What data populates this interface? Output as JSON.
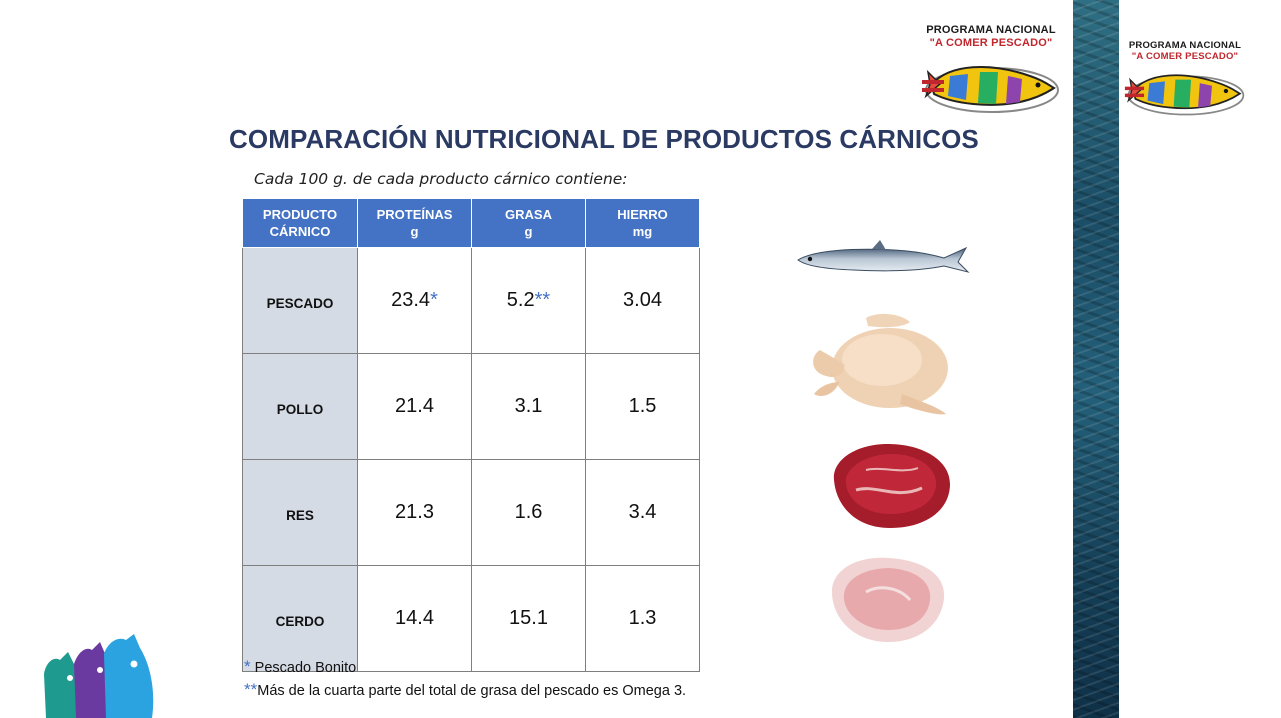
{
  "logo": {
    "line1": "PROGRAMA NACIONAL",
    "line2": "\"A COMER PESCADO\""
  },
  "title": "COMPARACIÓN NUTRICIONAL DE PRODUCTOS CÁRNICOS",
  "subtitle": "Cada 100 g. de cada producto cárnico contiene:",
  "table": {
    "headers": [
      {
        "line1": "PRODUCTO",
        "line2": "CÁRNICO"
      },
      {
        "line1": "PROTEÍNAS",
        "line2": "g"
      },
      {
        "line1": "GRASA",
        "line2": "g"
      },
      {
        "line1": "HIERRO",
        "line2": "mg"
      }
    ],
    "rows": [
      {
        "product": "PESCADO",
        "protein": "23.4",
        "protein_mark": "*",
        "fat": "5.2",
        "fat_mark": "**",
        "iron": "3.04"
      },
      {
        "product": "POLLO",
        "protein": "21.4",
        "protein_mark": "",
        "fat": "3.1",
        "fat_mark": "",
        "iron": "1.5"
      },
      {
        "product": "RES",
        "protein": "21.3",
        "protein_mark": "",
        "fat": "1.6",
        "fat_mark": "",
        "iron": "3.4"
      },
      {
        "product": "CERDO",
        "protein": "14.4",
        "protein_mark": "",
        "fat": "15.1",
        "fat_mark": "",
        "iron": "1.3"
      }
    ]
  },
  "footnotes": [
    {
      "mark": "*",
      "text": " Pescado Bonito"
    },
    {
      "mark": "**",
      "text": "Más de la cuarta parte del total de grasa del pescado es Omega 3."
    }
  ],
  "colors": {
    "header_bg": "#4472c4",
    "row_head_bg": "#d5dbe5",
    "title": "#2a3a63",
    "accent_mark": "#4472c4"
  },
  "icons": [
    "anchovy-fish-image",
    "raw-chicken-image",
    "beef-steak-image",
    "pork-chop-image",
    "fish-logo-icon",
    "colored-fish-decoration-icon"
  ]
}
